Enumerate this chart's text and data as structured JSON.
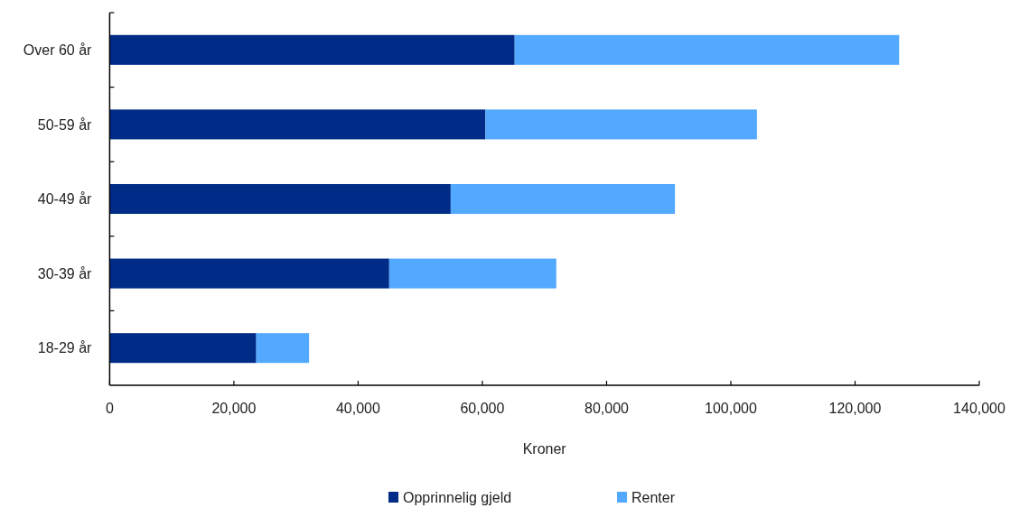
{
  "chart_data": {
    "type": "bar",
    "orientation": "horizontal",
    "stacked": true,
    "categories": [
      "Over 60 år",
      "50-59 år",
      "40-49 år",
      "30-39 år",
      "18-29 år"
    ],
    "series": [
      {
        "name": "Opprinnelig gjeld",
        "color": "#002b87",
        "values": [
          65200,
          60500,
          54900,
          45000,
          23600
        ]
      },
      {
        "name": "Renter",
        "color": "#52a9ff",
        "values": [
          61900,
          43700,
          36100,
          26900,
          8500
        ]
      }
    ],
    "xlim": [
      0,
      140000
    ],
    "xticks": [
      0,
      {
        "value": 20000,
        "label": "20,000"
      },
      {
        "value": 40000,
        "label": "40,000"
      },
      {
        "value": 60000,
        "label": "60,000"
      },
      {
        "value": 80000,
        "label": "80,000"
      },
      {
        "value": 100000,
        "label": "100,000"
      },
      {
        "value": 120000,
        "label": "120,000"
      },
      {
        "value": 140000,
        "label": "140,000"
      }
    ],
    "xlabel": "Kroner",
    "legend": "bottom"
  }
}
